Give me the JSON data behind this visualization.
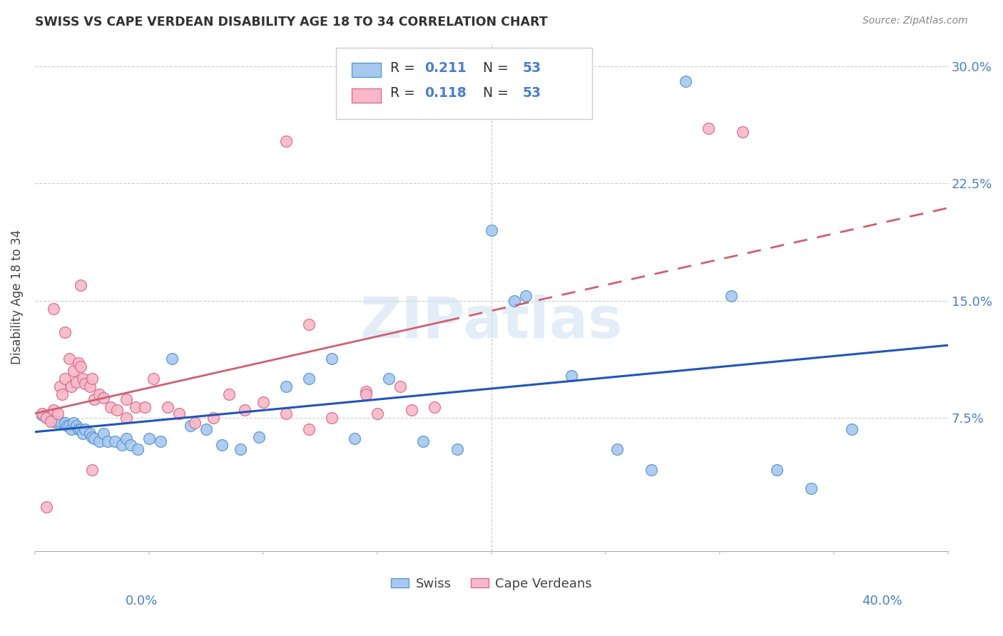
{
  "title": "SWISS VS CAPE VERDEAN DISABILITY AGE 18 TO 34 CORRELATION CHART",
  "source": "Source: ZipAtlas.com",
  "ylabel": "Disability Age 18 to 34",
  "xlim": [
    0.0,
    0.4
  ],
  "ylim": [
    -0.01,
    0.315
  ],
  "yticks": [
    0.075,
    0.15,
    0.225,
    0.3
  ],
  "ytick_labels": [
    "7.5%",
    "15.0%",
    "22.5%",
    "30.0%"
  ],
  "xtick_left_label": "0.0%",
  "xtick_right_label": "40.0%",
  "xtick_minor_positions": [
    0.05,
    0.1,
    0.15,
    0.2,
    0.25,
    0.3,
    0.35
  ],
  "legend_swiss_R": "0.211",
  "legend_swiss_N": "53",
  "legend_cv_R": "0.118",
  "legend_cv_N": "53",
  "swiss_fill_color": "#a8c8f0",
  "swiss_edge_color": "#5a9ad0",
  "cv_fill_color": "#f8b8c8",
  "cv_edge_color": "#d87090",
  "swiss_line_color": "#2255bb",
  "cv_line_color": "#d06070",
  "tick_color": "#4a7fcc",
  "watermark": "ZIPatlas",
  "swiss_x": [
    0.003,
    0.005,
    0.006,
    0.008,
    0.01,
    0.011,
    0.013,
    0.014,
    0.015,
    0.016,
    0.017,
    0.018,
    0.019,
    0.02,
    0.021,
    0.022,
    0.024,
    0.025,
    0.026,
    0.028,
    0.03,
    0.032,
    0.035,
    0.038,
    0.04,
    0.042,
    0.045,
    0.05,
    0.055,
    0.06,
    0.068,
    0.075,
    0.082,
    0.09,
    0.098,
    0.11,
    0.12,
    0.13,
    0.14,
    0.155,
    0.17,
    0.185,
    0.2,
    0.215,
    0.235,
    0.255,
    0.27,
    0.285,
    0.305,
    0.325,
    0.34,
    0.358,
    0.21
  ],
  "swiss_y": [
    0.077,
    0.076,
    0.075,
    0.073,
    0.072,
    0.073,
    0.072,
    0.07,
    0.07,
    0.068,
    0.072,
    0.07,
    0.068,
    0.068,
    0.065,
    0.068,
    0.065,
    0.063,
    0.062,
    0.06,
    0.065,
    0.06,
    0.06,
    0.058,
    0.062,
    0.058,
    0.055,
    0.062,
    0.06,
    0.113,
    0.07,
    0.068,
    0.058,
    0.055,
    0.063,
    0.095,
    0.1,
    0.113,
    0.062,
    0.1,
    0.06,
    0.055,
    0.195,
    0.153,
    0.102,
    0.055,
    0.042,
    0.29,
    0.153,
    0.042,
    0.03,
    0.068,
    0.15
  ],
  "cv_x": [
    0.003,
    0.005,
    0.007,
    0.008,
    0.01,
    0.011,
    0.012,
    0.013,
    0.015,
    0.016,
    0.017,
    0.018,
    0.019,
    0.02,
    0.021,
    0.022,
    0.024,
    0.025,
    0.026,
    0.028,
    0.03,
    0.033,
    0.036,
    0.04,
    0.044,
    0.048,
    0.052,
    0.058,
    0.063,
    0.07,
    0.078,
    0.085,
    0.092,
    0.1,
    0.11,
    0.12,
    0.13,
    0.145,
    0.16,
    0.175,
    0.02,
    0.12,
    0.145,
    0.165,
    0.295,
    0.31,
    0.005,
    0.008,
    0.013,
    0.15,
    0.11,
    0.025,
    0.04
  ],
  "cv_y": [
    0.078,
    0.075,
    0.073,
    0.08,
    0.078,
    0.095,
    0.09,
    0.1,
    0.113,
    0.095,
    0.105,
    0.098,
    0.11,
    0.108,
    0.1,
    0.097,
    0.095,
    0.1,
    0.087,
    0.09,
    0.088,
    0.082,
    0.08,
    0.087,
    0.082,
    0.082,
    0.1,
    0.082,
    0.078,
    0.072,
    0.075,
    0.09,
    0.08,
    0.085,
    0.078,
    0.068,
    0.075,
    0.092,
    0.095,
    0.082,
    0.16,
    0.135,
    0.09,
    0.08,
    0.26,
    0.258,
    0.018,
    0.145,
    0.13,
    0.078,
    0.252,
    0.042,
    0.075
  ]
}
